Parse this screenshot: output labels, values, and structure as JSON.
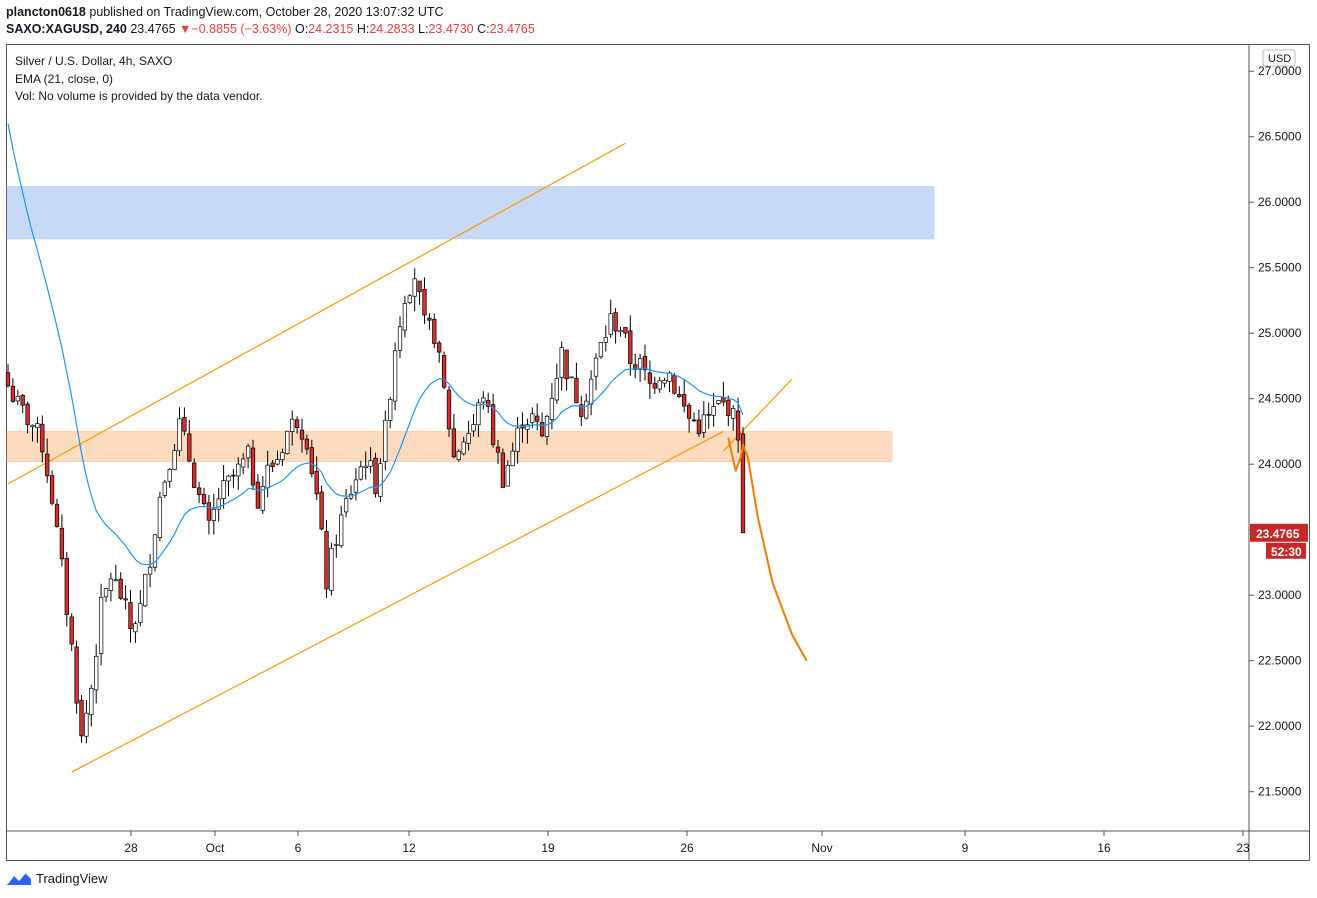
{
  "header": {
    "author": "plancton0618",
    "published_text": "published on TradingView.com, October 28, 2020 13:07:32 UTC",
    "symbol": "SAXO:XAGUSD, 240",
    "last_price": "23.4765",
    "change_arrow": "▼",
    "change": "−0.8855 (−3.63%)",
    "o_label": "O:",
    "o_value": "24.2315",
    "h_label": "H:",
    "h_value": "24.2833",
    "l_label": "L:",
    "l_value": "23.4730",
    "c_label": "C:",
    "c_value": "23.4765"
  },
  "legend": {
    "title": "Silver / U.S. Dollar, 4h, SAXO",
    "ema": "EMA (21, close, 0)",
    "vol": "Vol: No volume is provided by the data vendor."
  },
  "price_axis": {
    "currency_badge": "USD",
    "current_price_label": "23.4765",
    "countdown_label": "52:30"
  },
  "footer": {
    "brand": "TradingView"
  },
  "colors": {
    "up_candle": "#ffffff",
    "down_candle": "#d32f2f",
    "wick": "#000000",
    "ema": "#2196f3",
    "channel": "#ff9800",
    "projection": "#f57c00",
    "resistance_zone": "#b3cdf5",
    "support_zone": "#fcd3b0",
    "price_badge": "#c62828"
  },
  "chart_data": {
    "type": "candlestick",
    "title": "Silver / U.S. Dollar, 4h, SAXO",
    "ylim": [
      21.2,
      27.2
    ],
    "y_ticks": [
      "21.5000",
      "22.0000",
      "22.5000",
      "23.0000",
      "23.5000",
      "24.0000",
      "24.5000",
      "25.0000",
      "25.5000",
      "26.0000",
      "26.5000",
      "27.0000"
    ],
    "x_tick_labels": [
      "28",
      "Oct",
      "6",
      "12",
      "19",
      "26",
      "Nov",
      "9",
      "16",
      "23"
    ],
    "close_path": [
      [
        0,
        24.6
      ],
      [
        2,
        24.45
      ],
      [
        5,
        24.3
      ],
      [
        7,
        24.15
      ],
      [
        9,
        23.75
      ],
      [
        11,
        23.2
      ],
      [
        13,
        22.6
      ],
      [
        15,
        21.9
      ],
      [
        17,
        22.3
      ],
      [
        19,
        22.9
      ],
      [
        21,
        23.15
      ],
      [
        23,
        23.0
      ],
      [
        25,
        22.75
      ],
      [
        27,
        22.9
      ],
      [
        29,
        23.3
      ],
      [
        31,
        23.75
      ],
      [
        33,
        24.05
      ],
      [
        35,
        24.3
      ],
      [
        37,
        24.05
      ],
      [
        39,
        23.75
      ],
      [
        41,
        23.5
      ],
      [
        43,
        23.75
      ],
      [
        45,
        23.85
      ],
      [
        47,
        23.95
      ],
      [
        49,
        24.05
      ],
      [
        51,
        23.75
      ],
      [
        53,
        23.95
      ],
      [
        55,
        24.05
      ],
      [
        57,
        24.25
      ],
      [
        59,
        24.35
      ],
      [
        61,
        24.2
      ],
      [
        63,
        23.75
      ],
      [
        65,
        23.1
      ],
      [
        67,
        23.45
      ],
      [
        69,
        23.7
      ],
      [
        71,
        23.9
      ],
      [
        73,
        24.05
      ],
      [
        75,
        23.85
      ],
      [
        77,
        24.25
      ],
      [
        79,
        24.9
      ],
      [
        81,
        25.3
      ],
      [
        83,
        25.45
      ],
      [
        85,
        25.05
      ],
      [
        87,
        25.0
      ],
      [
        89,
        24.55
      ],
      [
        91,
        24.05
      ],
      [
        93,
        24.2
      ],
      [
        95,
        24.3
      ],
      [
        97,
        24.55
      ],
      [
        99,
        24.2
      ],
      [
        101,
        23.9
      ],
      [
        103,
        24.1
      ],
      [
        105,
        24.35
      ],
      [
        107,
        24.35
      ],
      [
        109,
        24.2
      ],
      [
        111,
        24.55
      ],
      [
        113,
        24.85
      ],
      [
        115,
        24.6
      ],
      [
        117,
        24.45
      ],
      [
        119,
        24.65
      ],
      [
        121,
        24.9
      ],
      [
        123,
        25.1
      ],
      [
        125,
        25.05
      ],
      [
        127,
        24.8
      ],
      [
        129,
        24.75
      ],
      [
        131,
        24.6
      ],
      [
        133,
        24.7
      ],
      [
        135,
        24.7
      ],
      [
        137,
        24.5
      ],
      [
        139,
        24.35
      ],
      [
        141,
        24.3
      ],
      [
        143,
        24.35
      ],
      [
        145,
        24.45
      ],
      [
        147,
        24.45
      ],
      [
        149,
        24.25
      ],
      [
        150,
        23.4765
      ]
    ],
    "annotations": {
      "resistance_zone": [
        25.72,
        26.12
      ],
      "support_zone": [
        24.02,
        24.25
      ],
      "channel_upper": [
        [
          0,
          23.85
        ],
        [
          126,
          26.45
        ]
      ],
      "channel_lower": [
        [
          13,
          21.65
        ],
        [
          146,
          24.25
        ]
      ],
      "channel_upper_extension": [
        [
          146,
          24.1
        ],
        [
          160,
          24.65
        ]
      ],
      "projection_curve": [
        [
          147,
          24.2
        ],
        [
          148.5,
          23.95
        ],
        [
          149.5,
          24.05
        ],
        [
          150,
          24.15
        ],
        [
          151,
          24.05
        ],
        [
          153,
          23.6
        ],
        [
          156,
          23.1
        ],
        [
          160,
          22.7
        ],
        [
          163,
          22.5
        ]
      ]
    }
  }
}
